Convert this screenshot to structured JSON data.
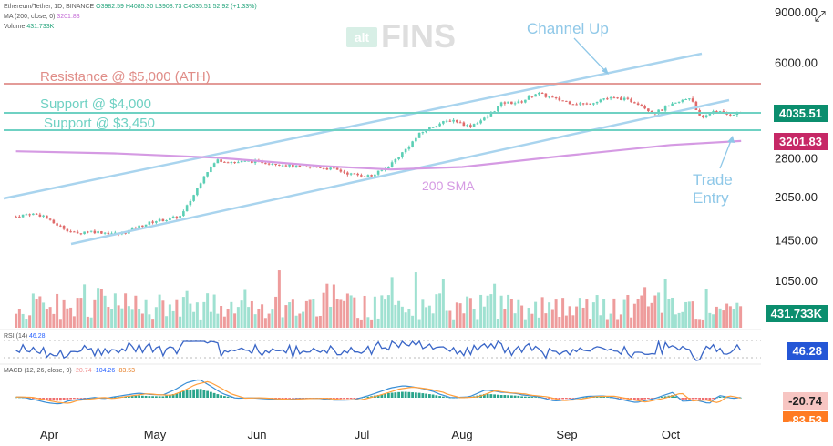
{
  "header": {
    "symbol": "Ethereum/Tether, 1D, BINANCE",
    "ohlc": "O3982.59 H4085.30 L3908.73 C4035.51 52.92 (+1.33%)",
    "ma_label": "MA (200, close, 0)",
    "ma_value": "3201.83",
    "volume_label": "Volume",
    "volume_value": "431.733K",
    "rsi_label": "RSI (14)",
    "rsi_value": "46.28",
    "macd_label": "MACD (12, 26, close, 9)",
    "macd_hist": "-20.74",
    "macd_line": "-104.26",
    "macd_signal": "-83.53"
  },
  "watermark": {
    "prefix": "alt",
    "brand": "FINS"
  },
  "colors": {
    "up": "#5ccfb5",
    "down": "#e06b6b",
    "resistance": "#e39b98",
    "support": "#6fd1c3",
    "channel": "#a9d4ee",
    "sma": "#d59ae3",
    "annot_text": "#8fc8e8",
    "rsi": "#3a66c7",
    "macd_line": "#3a8fd6",
    "macd_signal": "#ff9f3c",
    "price_tag": "#0b8e6e",
    "sma_tag": "#c62866",
    "rsi_tag": "#2456d6",
    "macd_pos_tag": "#f7c5c2",
    "macd_neg_tag": "#ff7b22"
  },
  "annotations": {
    "resistance": "Resistance @ $5,000 (ATH)",
    "support4000": "Support @ $4,000",
    "support3450": "Support @ $3,450",
    "channel_up": "Channel Up",
    "sma": "200 SMA",
    "trade_entry_1": "Trade",
    "trade_entry_2": "Entry"
  },
  "tags": {
    "price": "4035.51",
    "sma": "3201.83",
    "volume": "431.733K",
    "rsi": "46.28",
    "macd_hist": "-20.74",
    "macd_signal": "-83.53"
  },
  "chart_data": {
    "type": "candlestick",
    "title": "Ethereum/Tether, 1D, BINANCE",
    "xlabels": [
      "Apr",
      "May",
      "Jun",
      "Jul",
      "Aug",
      "Sep",
      "Oct"
    ],
    "price_ticks": [
      "9000.00",
      "6000.00",
      "2800.00",
      "2050.00",
      "1450.00",
      "1050.00"
    ],
    "price_tick_values": [
      9000,
      6000,
      2800,
      2050,
      1450,
      1050
    ],
    "scale": "log",
    "close_series": [
      {
        "date": "Mar 20",
        "value": 1750
      },
      {
        "date": "Mar 25",
        "value": 1790
      },
      {
        "date": "Mar 30",
        "value": 1760
      },
      {
        "date": "Apr 01",
        "value": 1690
      },
      {
        "date": "Apr 05",
        "value": 1600
      },
      {
        "date": "Apr 09",
        "value": 1520
      },
      {
        "date": "Apr 12",
        "value": 1560
      },
      {
        "date": "Apr 17",
        "value": 1540
      },
      {
        "date": "Apr 22",
        "value": 1520
      },
      {
        "date": "Apr 27",
        "value": 1610
      },
      {
        "date": "May 01",
        "value": 1690
      },
      {
        "date": "May 05",
        "value": 1710
      },
      {
        "date": "May 09",
        "value": 1760
      },
      {
        "date": "May 13",
        "value": 2100
      },
      {
        "date": "May 16",
        "value": 2450
      },
      {
        "date": "May 20",
        "value": 2750
      },
      {
        "date": "May 25",
        "value": 2700
      },
      {
        "date": "May 30",
        "value": 2720
      },
      {
        "date": "Jun 04",
        "value": 2700
      },
      {
        "date": "Jun 09",
        "value": 2650
      },
      {
        "date": "Jun 14",
        "value": 2580
      },
      {
        "date": "Jun 19",
        "value": 2600
      },
      {
        "date": "Jun 24",
        "value": 2550
      },
      {
        "date": "Jun 29",
        "value": 2450
      },
      {
        "date": "Jul 04",
        "value": 2420
      },
      {
        "date": "Jul 09",
        "value": 2600
      },
      {
        "date": "Jul 14",
        "value": 2950
      },
      {
        "date": "Jul 19",
        "value": 3400
      },
      {
        "date": "Jul 24",
        "value": 3650
      },
      {
        "date": "Jul 29",
        "value": 3800
      },
      {
        "date": "Aug 03",
        "value": 3600
      },
      {
        "date": "Aug 08",
        "value": 3850
      },
      {
        "date": "Aug 13",
        "value": 4350
      },
      {
        "date": "Aug 18",
        "value": 4350
      },
      {
        "date": "Aug 23",
        "value": 4700
      },
      {
        "date": "Aug 28",
        "value": 4500
      },
      {
        "date": "Sep 02",
        "value": 4350
      },
      {
        "date": "Sep 07",
        "value": 4300
      },
      {
        "date": "Sep 12",
        "value": 4500
      },
      {
        "date": "Sep 17",
        "value": 4500
      },
      {
        "date": "Sep 22",
        "value": 4350
      },
      {
        "date": "Sep 27",
        "value": 4000
      },
      {
        "date": "Oct 02",
        "value": 4300
      },
      {
        "date": "Oct 07",
        "value": 4550
      },
      {
        "date": "Oct 10",
        "value": 3800
      },
      {
        "date": "Oct 14",
        "value": 4100
      },
      {
        "date": "Oct 18",
        "value": 3950
      },
      {
        "date": "Oct 22",
        "value": 4035
      }
    ],
    "sma200": [
      {
        "date": "Mar 20",
        "value": 2950
      },
      {
        "date": "Apr 20",
        "value": 2900
      },
      {
        "date": "May 20",
        "value": 2800
      },
      {
        "date": "Jun 20",
        "value": 2620
      },
      {
        "date": "Jul 10",
        "value": 2550
      },
      {
        "date": "Aug 01",
        "value": 2600
      },
      {
        "date": "Sep 01",
        "value": 2850
      },
      {
        "date": "Oct 01",
        "value": 3100
      },
      {
        "date": "Oct 22",
        "value": 3201.83
      }
    ],
    "horizontal_levels": [
      {
        "name": "Resistance @ $5,000 (ATH)",
        "value": 5000
      },
      {
        "name": "Support @ $4,000",
        "value": 4000
      },
      {
        "name": "Support @ $3,450",
        "value": 3450
      }
    ]
  }
}
